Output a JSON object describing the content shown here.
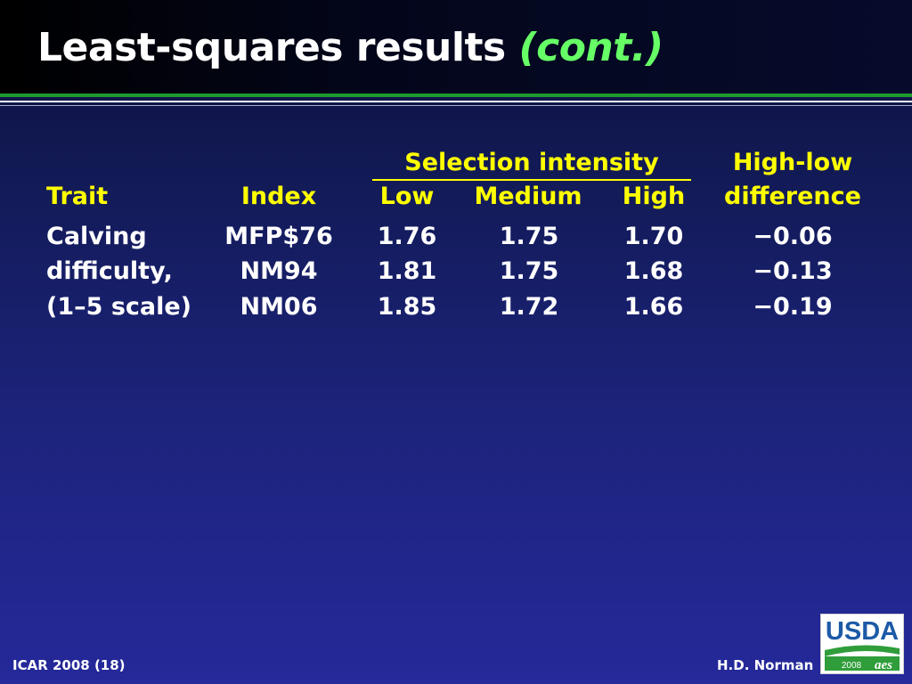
{
  "slide": {
    "title_main": "Least-squares results",
    "title_italic": "(cont.)"
  },
  "table": {
    "group_header": "Selection intensity",
    "highlow_header_line1": "High-low",
    "highlow_header_line2": "difference",
    "headers": {
      "trait": "Trait",
      "index": "Index",
      "low": "Low",
      "medium": "Medium",
      "high": "High"
    },
    "trait_lines": [
      "Calving",
      "difficulty,",
      "(1–5 scale)"
    ],
    "rows": [
      {
        "index": "MFP$76",
        "low": "1.76",
        "medium": "1.75",
        "high": "1.70",
        "diff": "−0.06"
      },
      {
        "index": "NM94",
        "low": "1.81",
        "medium": "1.75",
        "high": "1.68",
        "diff": "−0.13"
      },
      {
        "index": "NM06",
        "low": "1.85",
        "medium": "1.72",
        "high": "1.66",
        "diff": "−0.19"
      }
    ]
  },
  "footer": {
    "left": "ICAR 2008 (18)",
    "right": "H.D. Norman"
  },
  "logo": {
    "text": "USDA",
    "year": "2008",
    "mark": "aes"
  },
  "colors": {
    "header_text": "#ffff00",
    "title_italic": "#66ff66",
    "rule_green": "#1f9a2f",
    "logo_blue": "#1c5aa6",
    "logo_green": "#2f9d3a"
  }
}
